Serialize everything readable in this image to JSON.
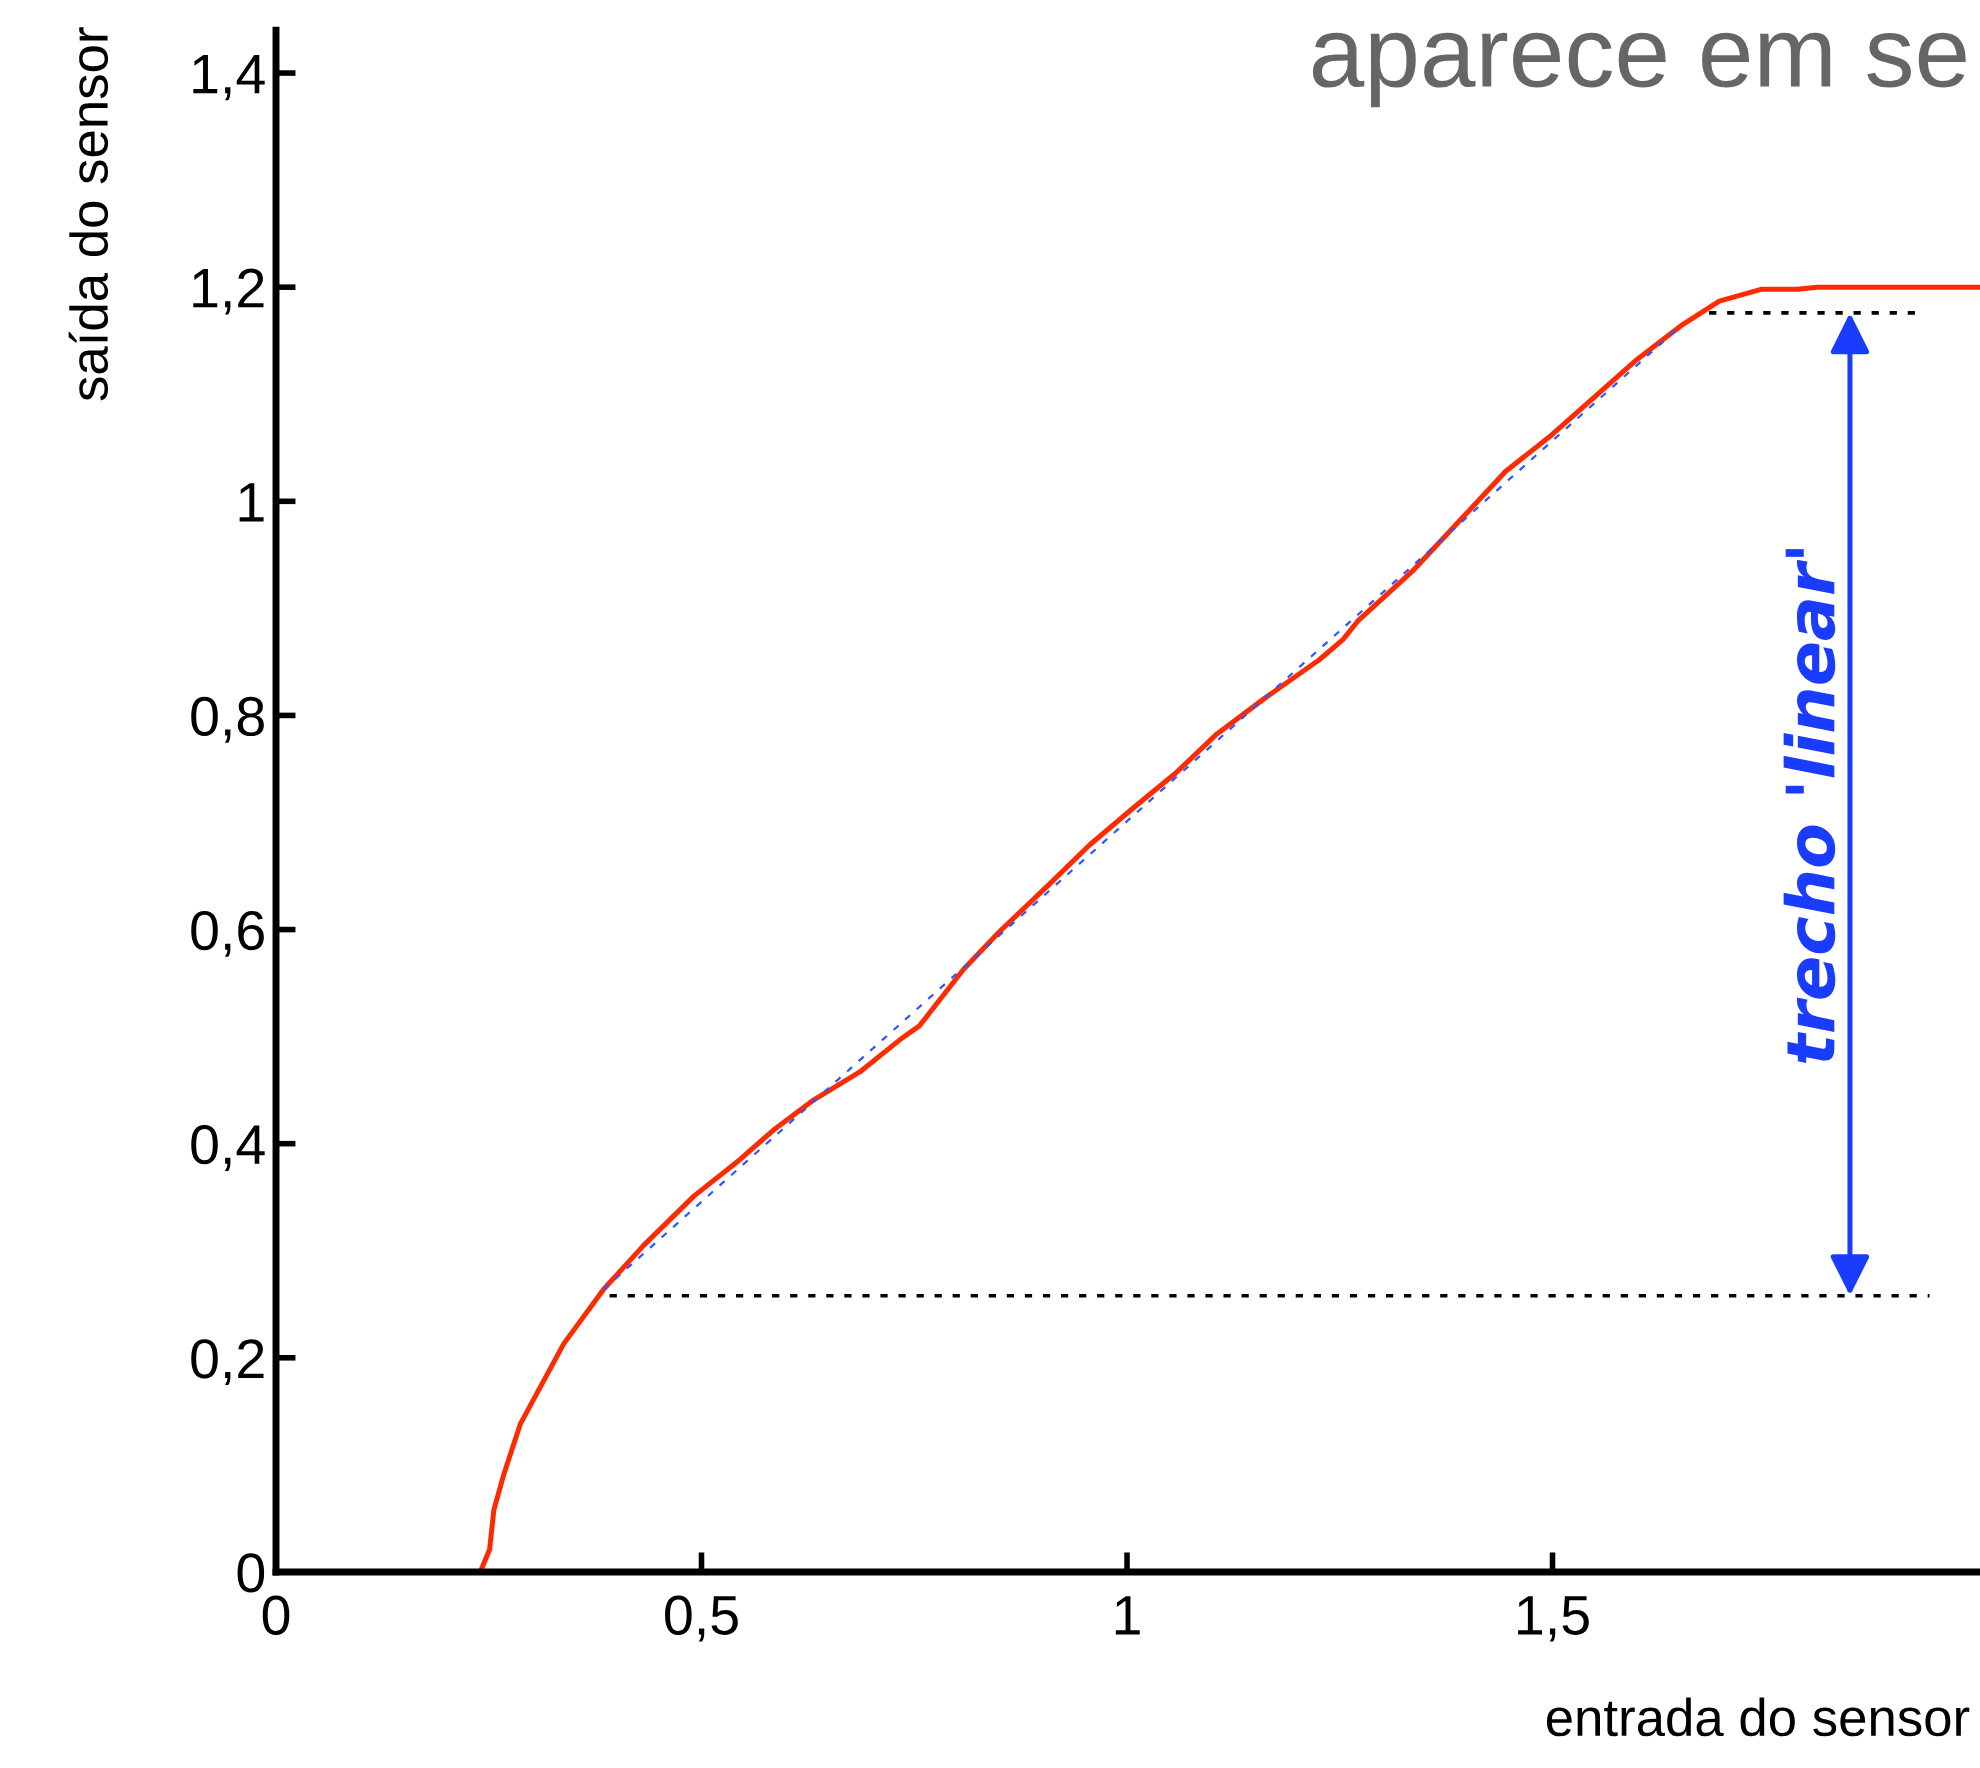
{
  "chart_data": {
    "type": "line",
    "title": "aparece em se",
    "xlabel": "entrada do sensor",
    "ylabel": "saída do sensor",
    "xlim": [
      0,
      2.0
    ],
    "ylim": [
      0,
      1.44
    ],
    "xticks": [
      0,
      {
        "value": 0.5,
        "label": "0,5"
      },
      1,
      {
        "value": 1.5,
        "label": "1,5"
      }
    ],
    "yticks": [
      0,
      {
        "value": 0.2,
        "label": "0,2"
      },
      {
        "value": 0.4,
        "label": "0,4"
      },
      {
        "value": 0.6,
        "label": "0,6"
      },
      {
        "value": 0.8,
        "label": "0,8"
      },
      1,
      {
        "value": 1.2,
        "label": "1,2"
      },
      {
        "value": 1.4,
        "label": "1,4"
      }
    ],
    "grid": false,
    "marker": "none",
    "series": [
      {
        "color": "#ff2a00",
        "line_style": "solid",
        "x": [
          0,
          0.24,
          0.251,
          0.256,
          0.268,
          0.287,
          0.338,
          0.385,
          0.432,
          0.491,
          0.545,
          0.585,
          0.632,
          0.686,
          0.733,
          0.756,
          0.808,
          0.85,
          0.907,
          0.956,
          1.008,
          1.057,
          1.106,
          1.16,
          1.226,
          1.254,
          1.271,
          1.337,
          1.445,
          1.499,
          1.597,
          1.651,
          1.696,
          1.745,
          1.788,
          1.811,
          2.0
        ],
        "values": [
          0,
          0,
          0.021,
          0.058,
          0.092,
          0.138,
          0.213,
          0.264,
          0.305,
          0.351,
          0.385,
          0.413,
          0.441,
          0.467,
          0.497,
          0.51,
          0.563,
          0.598,
          0.641,
          0.679,
          0.714,
          0.746,
          0.783,
          0.815,
          0.852,
          0.871,
          0.888,
          0.936,
          1.028,
          1.062,
          1.131,
          1.164,
          1.187,
          1.198,
          1.198,
          1.2,
          1.2
        ]
      },
      {
        "color": "#3355ff",
        "line_style": "dashed",
        "x": [
          0.385,
          1.651
        ],
        "values": [
          0.264,
          1.164
        ]
      },
      {
        "color": "#000000",
        "line_style": "dotted",
        "x": [
          0.392,
          1.943
        ],
        "values": [
          0.258,
          0.258
        ]
      },
      {
        "color": "#000000",
        "line_style": "dotted",
        "x": [
          1.684,
          1.931
        ],
        "values": [
          1.176,
          1.176
        ]
      }
    ],
    "annotations": [
      "trecho 'linear'"
    ]
  }
}
